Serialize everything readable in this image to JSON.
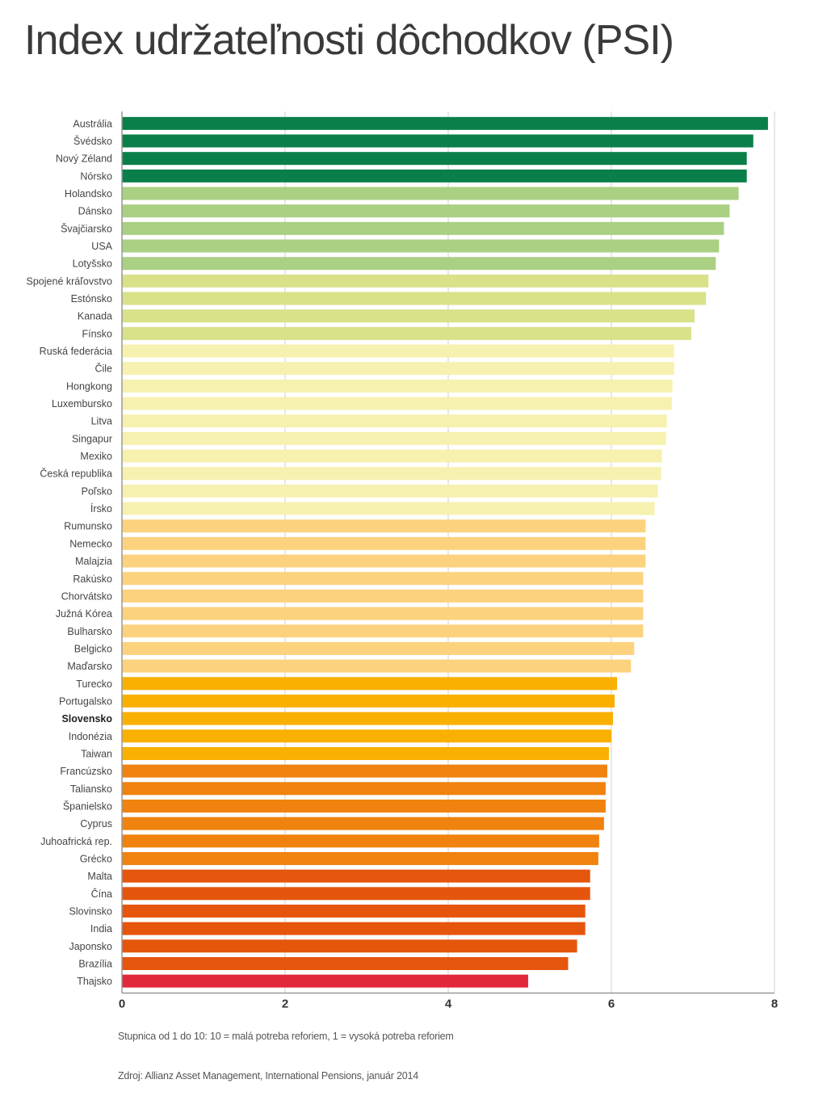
{
  "title": "Index udržateľnosti dôchodkov (PSI)",
  "notes": {
    "scale": "Stupnica od 1 do 10: 10 = malá potreba reforiem, 1 = vysoká potreba reforiem",
    "source": "Zdroj: Allianz Asset Management, International Pensions, január 2014"
  },
  "colors": {
    "dark_green": "#0b7f49",
    "light_green": "#a9d083",
    "yellow_green": "#d9e189",
    "pale_yellow": "#f7f1b0",
    "light_orange": "#fdd27e",
    "amber": "#f9b000",
    "orange": "#f0820f",
    "dark_orange": "#e5560c",
    "red": "#e1283a",
    "axis": "#999999",
    "gridline": "#d0d0d0"
  },
  "chart_data": {
    "type": "bar",
    "orientation": "horizontal",
    "title": "Index udržateľnosti dôchodkov (PSI)",
    "xlabel": "",
    "ylabel": "",
    "xlim": [
      0,
      8
    ],
    "xticks": [
      0,
      2,
      4,
      6,
      8
    ],
    "grid": "vertical lines at ticks",
    "highlighted_category": "Slovensko",
    "categories": [
      "Austrália",
      "Švédsko",
      "Nový Zéland",
      "Nórsko",
      "Holandsko",
      "Dánsko",
      "Švajčiarsko",
      "USA",
      "Lotyšsko",
      "Spojené kráľovstvo",
      "Estónsko",
      "Kanada",
      "Fínsko",
      "Ruská federácia",
      "Čile",
      "Hongkong",
      "Luxembursko",
      "Litva",
      "Singapur",
      "Mexiko",
      "Česká republika",
      "Poľsko",
      "Írsko",
      "Rumunsko",
      "Nemecko",
      "Malajzia",
      "Rakúsko",
      "Chorvátsko",
      "Južná Kórea",
      "Bulharsko",
      "Belgicko",
      "Maďarsko",
      "Turecko",
      "Portugalsko",
      "Slovensko",
      "Indonézia",
      "Taiwan",
      "Francúzsko",
      "Taliansko",
      "Španielsko",
      "Cyprus",
      "Juhoafrická rep.",
      "Grécko",
      "Malta",
      "Čína",
      "Slovinsko",
      "India",
      "Japonsko",
      "Brazília",
      "Thajsko"
    ],
    "values": [
      7.92,
      7.74,
      7.66,
      7.66,
      7.56,
      7.45,
      7.38,
      7.32,
      7.28,
      7.19,
      7.16,
      7.02,
      6.98,
      6.77,
      6.77,
      6.75,
      6.74,
      6.68,
      6.67,
      6.62,
      6.61,
      6.57,
      6.53,
      6.42,
      6.42,
      6.42,
      6.39,
      6.39,
      6.39,
      6.39,
      6.28,
      6.24,
      6.07,
      6.04,
      6.02,
      6.0,
      5.97,
      5.95,
      5.93,
      5.93,
      5.91,
      5.85,
      5.84,
      5.74,
      5.74,
      5.68,
      5.68,
      5.58,
      5.47,
      4.98
    ],
    "bar_colors": [
      "dark_green",
      "dark_green",
      "dark_green",
      "dark_green",
      "light_green",
      "light_green",
      "light_green",
      "light_green",
      "light_green",
      "yellow_green",
      "yellow_green",
      "yellow_green",
      "yellow_green",
      "pale_yellow",
      "pale_yellow",
      "pale_yellow",
      "pale_yellow",
      "pale_yellow",
      "pale_yellow",
      "pale_yellow",
      "pale_yellow",
      "pale_yellow",
      "pale_yellow",
      "light_orange",
      "light_orange",
      "light_orange",
      "light_orange",
      "light_orange",
      "light_orange",
      "light_orange",
      "light_orange",
      "light_orange",
      "amber",
      "amber",
      "amber",
      "amber",
      "amber",
      "orange",
      "orange",
      "orange",
      "orange",
      "orange",
      "orange",
      "dark_orange",
      "dark_orange",
      "dark_orange",
      "dark_orange",
      "dark_orange",
      "dark_orange",
      "red"
    ]
  }
}
